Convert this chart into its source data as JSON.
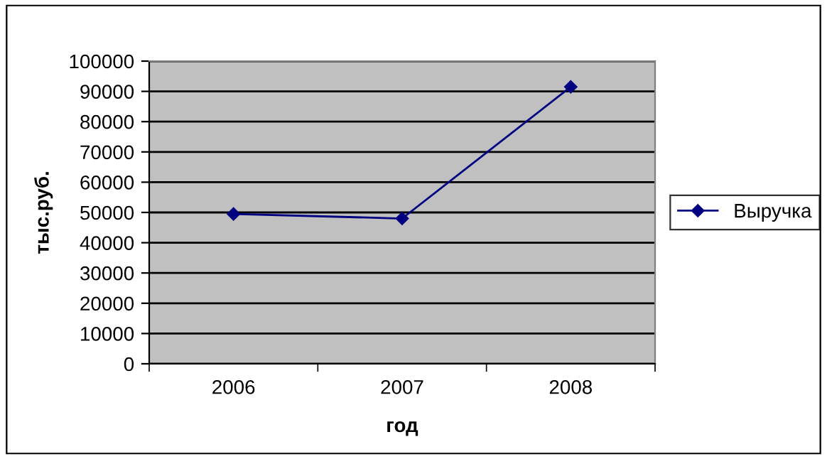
{
  "chart_data": {
    "type": "line",
    "xlabel": "год",
    "ylabel": "тыс.руб.",
    "categories": [
      "2006",
      "2007",
      "2008"
    ],
    "series": [
      {
        "name": "Выручка",
        "color": "#000080",
        "values": [
          49500,
          48000,
          91500
        ]
      }
    ],
    "ylim": [
      0,
      100000
    ],
    "yticks": [
      0,
      10000,
      20000,
      30000,
      40000,
      50000,
      60000,
      70000,
      80000,
      90000,
      100000
    ],
    "grid": "y",
    "legend": "right",
    "marker": "diamond",
    "line_style": "solid"
  }
}
